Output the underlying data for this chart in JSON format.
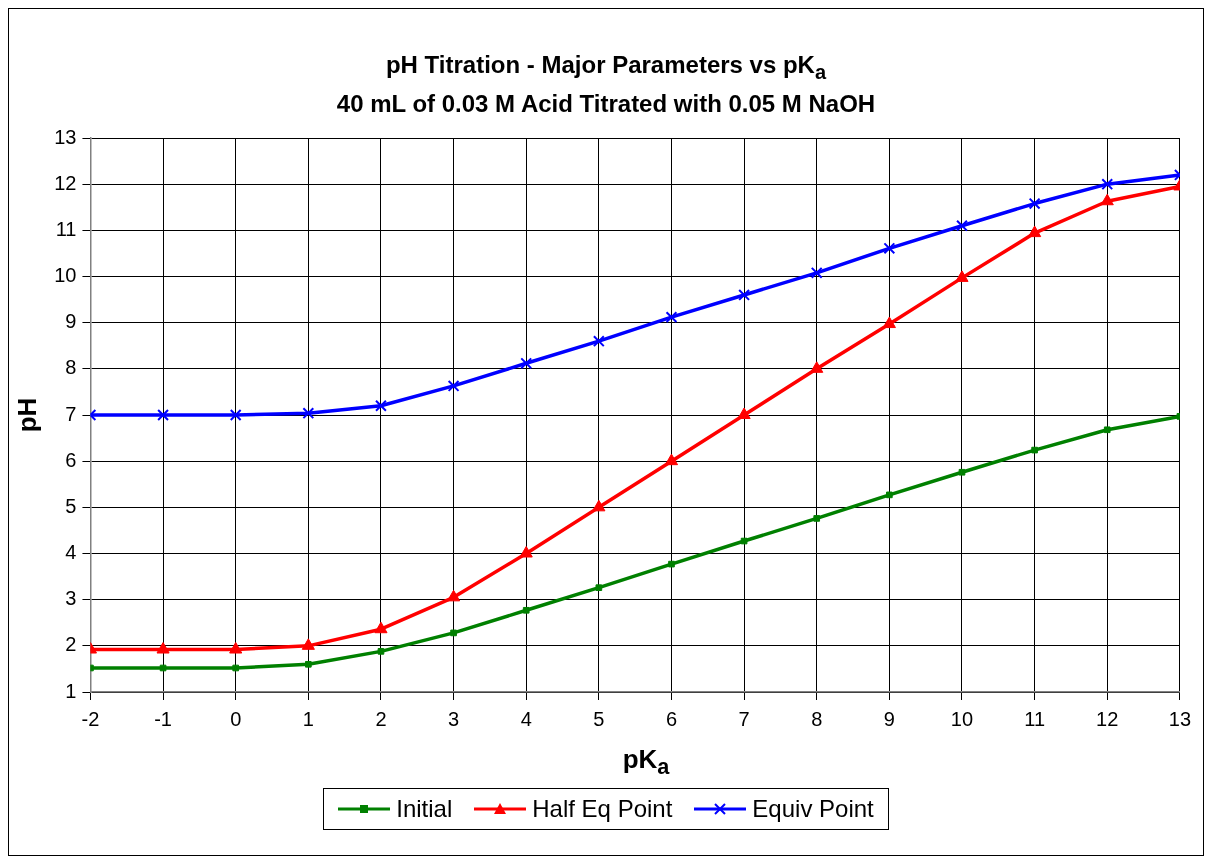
{
  "chart_data": {
    "type": "line",
    "title": "pH Titration - Major Parameters vs pK$_{a}$",
    "subtitle": "40 mL of 0.03 M Acid Titrated with 0.05 M NaOH",
    "xlabel": "pK$_{a}$",
    "ylabel": "pH",
    "x": [
      -2,
      -1,
      0,
      1,
      2,
      3,
      4,
      5,
      6,
      7,
      8,
      9,
      10,
      11,
      12,
      13
    ],
    "series": [
      {
        "name": "Initial",
        "color": "#008000",
        "marker": "square",
        "values": [
          1.52,
          1.52,
          1.52,
          1.6,
          1.88,
          2.28,
          2.77,
          3.26,
          3.77,
          4.27,
          4.76,
          5.27,
          5.76,
          6.24,
          6.68,
          6.97
        ]
      },
      {
        "name": "Half Eq Point",
        "color": "#ff0000",
        "marker": "triangle",
        "values": [
          1.92,
          1.92,
          1.92,
          2.0,
          2.36,
          3.05,
          4.0,
          5.0,
          6.0,
          7.0,
          8.0,
          8.97,
          9.97,
          10.94,
          11.63,
          11.95
        ]
      },
      {
        "name": "Equiv Point",
        "color": "#0000ff",
        "marker": "cross",
        "values": [
          7.0,
          7.0,
          7.0,
          7.04,
          7.2,
          7.63,
          8.12,
          8.6,
          9.12,
          9.6,
          10.08,
          10.61,
          11.1,
          11.58,
          12.0,
          12.2
        ]
      }
    ],
    "xlim": [
      -2,
      13
    ],
    "xticks": [
      -2,
      -1,
      0,
      1,
      2,
      3,
      4,
      5,
      6,
      7,
      8,
      9,
      10,
      11,
      12,
      13
    ],
    "ylim": [
      1,
      13
    ],
    "yticks": [
      1,
      2,
      3,
      4,
      5,
      6,
      7,
      8,
      9,
      10,
      11,
      12,
      13
    ],
    "grid": true,
    "legend": "bottom",
    "line_style": "solid"
  }
}
